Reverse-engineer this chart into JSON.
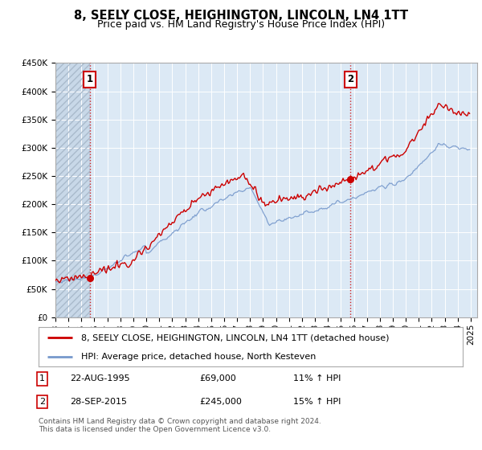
{
  "title": "8, SEELY CLOSE, HEIGHINGTON, LINCOLN, LN4 1TT",
  "subtitle": "Price paid vs. HM Land Registry's House Price Index (HPI)",
  "ylabel_ticks": [
    "£0",
    "£50K",
    "£100K",
    "£150K",
    "£200K",
    "£250K",
    "£300K",
    "£350K",
    "£400K",
    "£450K"
  ],
  "ytick_values": [
    0,
    50000,
    100000,
    150000,
    200000,
    250000,
    300000,
    350000,
    400000,
    450000
  ],
  "xlim": [
    1993.0,
    2025.5
  ],
  "ylim": [
    0,
    450000
  ],
  "hpi_color": "#7799cc",
  "price_color": "#cc0000",
  "background_color": "#ffffff",
  "plot_bg_color": "#dce9f5",
  "grid_color": "#ffffff",
  "sale1_x": 1995.645,
  "sale1_y": 69000,
  "sale2_x": 2015.747,
  "sale2_y": 245000,
  "sale1_label": "1",
  "sale2_label": "2",
  "legend_line1": "8, SEELY CLOSE, HEIGHINGTON, LINCOLN, LN4 1TT (detached house)",
  "legend_line2": "HPI: Average price, detached house, North Kesteven",
  "ann1_num": "1",
  "ann1_date": "22-AUG-1995",
  "ann1_price": "£69,000",
  "ann1_hpi": "11% ↑ HPI",
  "ann2_num": "2",
  "ann2_date": "28-SEP-2015",
  "ann2_price": "£245,000",
  "ann2_hpi": "15% ↑ HPI",
  "footer": "Contains HM Land Registry data © Crown copyright and database right 2024.\nThis data is licensed under the Open Government Licence v3.0.",
  "title_fontsize": 10.5,
  "subtitle_fontsize": 9,
  "tick_fontsize": 7.5,
  "legend_fontsize": 8,
  "ann_fontsize": 8,
  "footer_fontsize": 6.5
}
